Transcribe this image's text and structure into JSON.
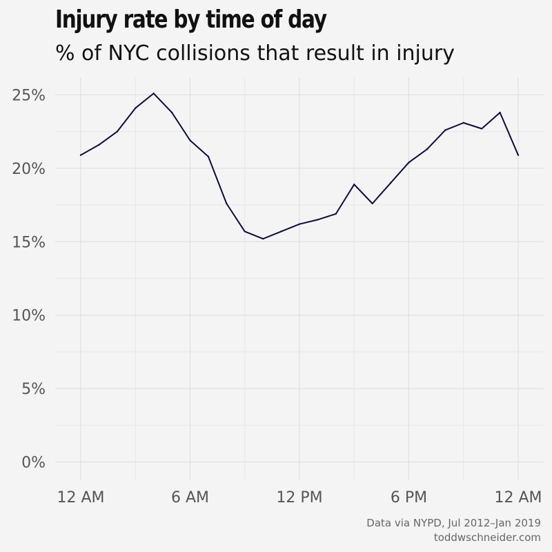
{
  "title": "Injury rate by time of day",
  "subtitle": "% of NYC collisions that result in injury",
  "caption": {
    "line1": "Data via NYPD, Jul 2012–Jan 2019",
    "line2": "toddwschneider.com"
  },
  "colors": {
    "background": "#f4f4f4",
    "line": "#0b0b3b",
    "grid": "#dcdcdc",
    "tick_text": "#555555"
  },
  "chart_data": {
    "type": "line",
    "title": "Injury rate by time of day",
    "subtitle": "% of NYC collisions that result in injury",
    "xlabel": "",
    "ylabel": "",
    "grid": true,
    "legend": "none",
    "x": [
      0,
      1,
      2,
      3,
      4,
      5,
      6,
      7,
      8,
      9,
      10,
      11,
      12,
      13,
      14,
      15,
      16,
      17,
      18,
      19,
      20,
      21,
      22,
      23,
      24
    ],
    "xlim": [
      -1.4,
      25.4
    ],
    "ylim": [
      -1.2,
      26.2
    ],
    "x_ticks": [
      {
        "value": 0,
        "label": "12 AM"
      },
      {
        "value": 6,
        "label": "6 AM"
      },
      {
        "value": 12,
        "label": "12 PM"
      },
      {
        "value": 18,
        "label": "6 PM"
      },
      {
        "value": 24,
        "label": "12 AM"
      }
    ],
    "y_ticks": [
      {
        "value": 0,
        "label": "0%"
      },
      {
        "value": 5,
        "label": "5%"
      },
      {
        "value": 10,
        "label": "10%"
      },
      {
        "value": 15,
        "label": "15%"
      },
      {
        "value": 20,
        "label": "20%"
      },
      {
        "value": 25,
        "label": "25%"
      }
    ],
    "series": [
      {
        "values": [
          20.9,
          21.6,
          22.5,
          24.1,
          25.1,
          23.8,
          21.9,
          20.8,
          17.6,
          15.7,
          15.2,
          15.7,
          16.2,
          16.5,
          16.9,
          18.9,
          17.6,
          19.0,
          20.4,
          21.3,
          22.6,
          23.1,
          22.7,
          23.8,
          20.9
        ]
      }
    ]
  }
}
